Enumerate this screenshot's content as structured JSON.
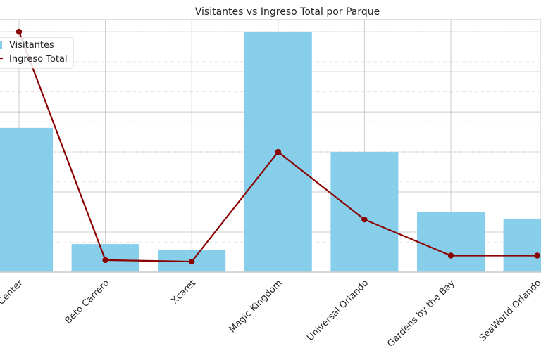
{
  "chart_data": {
    "type": "bar",
    "title": "Visitantes vs Ingreso Total por Parque",
    "xlabel": "",
    "ylabel": "",
    "categories": [
      "Iguazú Center",
      "Beto Carrero",
      "Xcaret",
      "Magic Kingdom",
      "Universal Orlando",
      "Gardens by the Bay",
      "SeaWorld Orlando"
    ],
    "series": [
      {
        "name": "Visitantes",
        "type": "bar",
        "color": "#87CEEB",
        "values": [
          3.6,
          0.7,
          0.55,
          6.0,
          3.0,
          1.5,
          1.33
        ]
      },
      {
        "name": "Ingreso Total",
        "type": "line",
        "color": "#8B0000",
        "values": [
          8.0,
          0.4,
          0.35,
          4.0,
          1.75,
          0.55,
          0.55
        ]
      }
    ],
    "ylim_bar": [
      0,
      6.3
    ],
    "ylim_line": [
      0,
      8.4
    ],
    "grid": true,
    "legend": "upper-left"
  }
}
